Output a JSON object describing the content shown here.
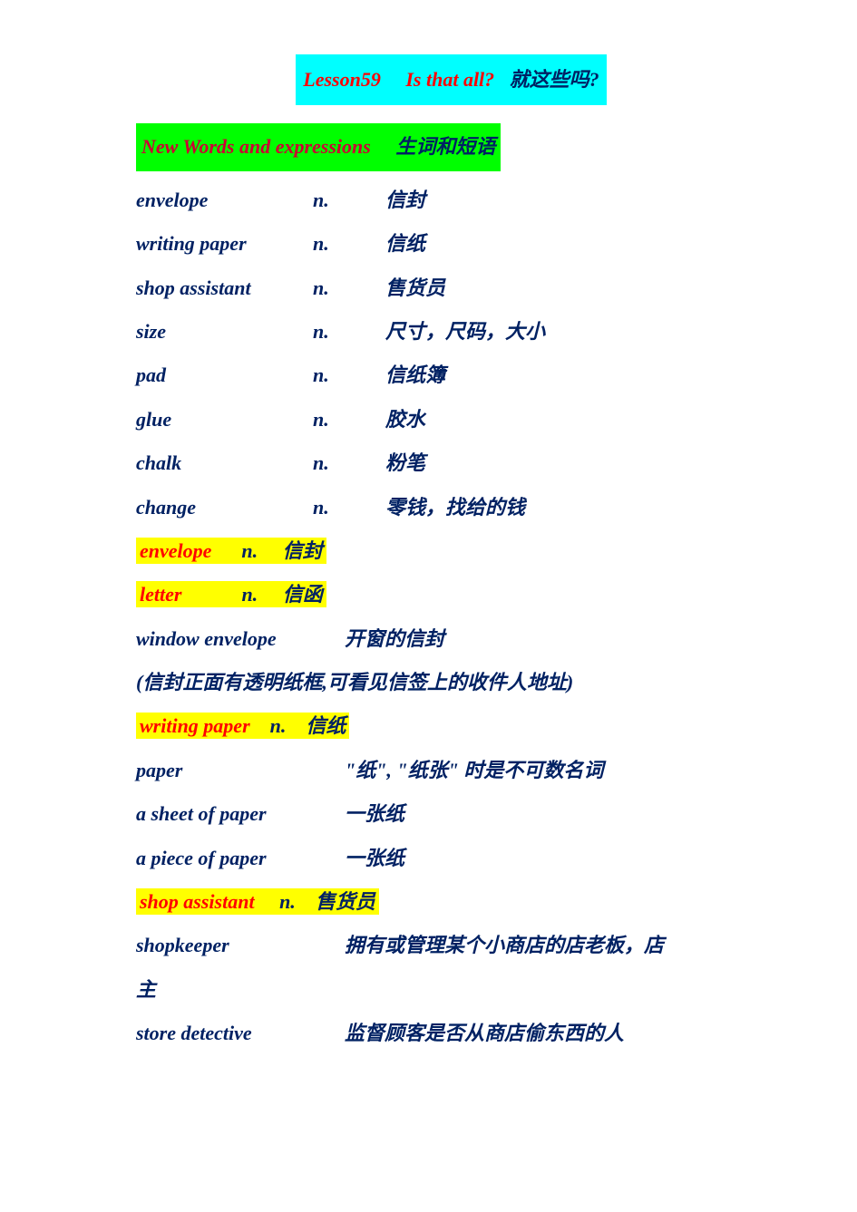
{
  "title": {
    "lesson": "Lesson59",
    "question_en": "Is that all?",
    "question_cn": "就这些吗?"
  },
  "section_header": {
    "en": "New Words and expressions",
    "cn": "生词和短语"
  },
  "vocab": [
    {
      "word": "envelope",
      "pos": "n.",
      "def": "信封"
    },
    {
      "word": "writing paper",
      "pos": "n.",
      "def": "信纸"
    },
    {
      "word": "shop assistant",
      "pos": "n.",
      "def": "售货员"
    },
    {
      "word": "size",
      "pos": "n.",
      "def": "尺寸，尺码，大小"
    },
    {
      "word": "pad",
      "pos": "n.",
      "def": "信纸簿"
    },
    {
      "word": "glue",
      "pos": "n.",
      "def": "胶水"
    },
    {
      "word": "chalk",
      "pos": "n.",
      "def": "粉笔"
    },
    {
      "word": "change",
      "pos": "n.",
      "def": "零钱，找给的钱"
    }
  ],
  "highlight1": {
    "word": "envelope",
    "pos": "n.",
    "def": "信封"
  },
  "highlight2": {
    "word": "letter",
    "pos": "n.",
    "def": "信函"
  },
  "plain1": {
    "word": "window envelope",
    "def": "开窗的信封"
  },
  "note1": "(信封正面有透明纸框,可看见信签上的收件人地址)",
  "highlight3": {
    "word": "writing paper",
    "pos": "n.",
    "def": "信纸"
  },
  "plain2": {
    "word": "paper",
    "def": "\"纸\", \"纸张\" 时是不可数名词"
  },
  "plain3": {
    "word": "a sheet of paper",
    "def": "一张纸"
  },
  "plain4": {
    "word": "a piece of paper",
    "def": "一张纸"
  },
  "highlight4": {
    "word": "shop assistant",
    "pos": "n.",
    "def": "售货员"
  },
  "plain5": {
    "word": "shopkeeper",
    "def": "拥有或管理某个小商店的店老板，店"
  },
  "plain5_cont": "主",
  "plain6": {
    "word": "store detective",
    "def": "监督顾客是否从商店偷东西的人"
  },
  "colors": {
    "cyan_bg": "#00ffff",
    "green_bg": "#00ff00",
    "yellow_bg": "#ffff00",
    "red_text": "#ff0000",
    "dark_red_text": "#cc0033",
    "blue_text": "#002163",
    "white_bg": "#ffffff"
  },
  "typography": {
    "font_family": "Kaiti, STKaiti, Times New Roman, serif",
    "font_size": 22,
    "font_style": "italic",
    "font_weight": "bold",
    "line_height": 2.2
  }
}
